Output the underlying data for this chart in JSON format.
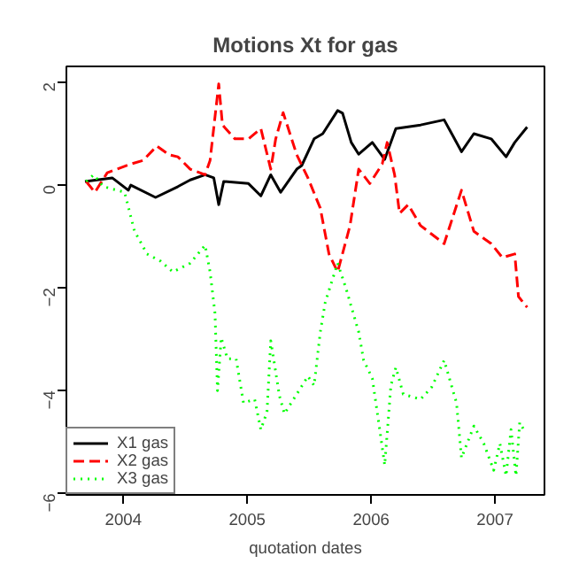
{
  "chart_data": {
    "type": "line",
    "title": "Motions Xt for gas",
    "xlabel": "quotation dates",
    "xlim": [
      2003.54,
      2007.4
    ],
    "ylim": [
      -6.03,
      2.31
    ],
    "xticks": [
      2004,
      2005,
      2006,
      2007
    ],
    "yticks": [
      -6,
      -4,
      -2,
      0,
      2
    ],
    "grid": false,
    "legend": "bottom left",
    "series": [
      {
        "name": "X1 gas",
        "color": "#000000",
        "line_style": "solid",
        "x": [
          2003.69,
          2003.91,
          2004.04,
          2004.06,
          2004.26,
          2004.44,
          2004.54,
          2004.66,
          2004.73,
          2004.77,
          2004.81,
          2005.01,
          2005.11,
          2005.19,
          2005.27,
          2005.4,
          2005.44,
          2005.54,
          2005.61,
          2005.73,
          2005.77,
          2005.84,
          2005.9,
          2006.01,
          2006.11,
          2006.2,
          2006.4,
          2006.59,
          2006.73,
          2006.83,
          2006.97,
          2007.09,
          2007.16,
          2007.26
        ],
        "values": [
          0.07,
          0.14,
          -0.1,
          0,
          -0.24,
          -0.03,
          0.1,
          0.2,
          0.14,
          -0.38,
          0.07,
          0.03,
          -0.21,
          0.2,
          -0.14,
          0.31,
          0.38,
          0.9,
          1.0,
          1.45,
          1.4,
          0.83,
          0.6,
          0.83,
          0.5,
          1.1,
          1.17,
          1.27,
          0.65,
          1.0,
          0.9,
          0.55,
          0.83,
          1.13
        ]
      },
      {
        "name": "X2 gas",
        "color": "#ff0000",
        "line_style": "dashed",
        "x": [
          2003.7,
          2003.77,
          2003.87,
          2004.06,
          2004.16,
          2004.27,
          2004.37,
          2004.44,
          2004.54,
          2004.66,
          2004.7,
          2004.77,
          2004.8,
          2004.9,
          2005.01,
          2005.11,
          2005.19,
          2005.23,
          2005.29,
          2005.4,
          2005.49,
          2005.59,
          2005.66,
          2005.73,
          2005.83,
          2005.9,
          2005.99,
          2006.09,
          2006.13,
          2006.19,
          2006.23,
          2006.3,
          2006.4,
          2006.59,
          2006.73,
          2006.83,
          2006.97,
          2007.06,
          2007.16,
          2007.19,
          2007.26
        ],
        "values": [
          0.07,
          -0.14,
          0.24,
          0.41,
          0.48,
          0.76,
          0.59,
          0.55,
          0.31,
          0.2,
          0.48,
          1.97,
          1.17,
          0.9,
          0.9,
          1.1,
          0.31,
          0.9,
          1.41,
          0.59,
          0.14,
          -0.45,
          -1.34,
          -1.69,
          -0.79,
          0.31,
          0.03,
          0.41,
          0.83,
          0.2,
          -0.55,
          -0.38,
          -0.79,
          -1.14,
          -0.1,
          -0.9,
          -1.14,
          -1.41,
          -1.34,
          -2.17,
          -2.38
        ]
      },
      {
        "name": "X3 gas",
        "color": "#00ff00",
        "line_style": "dotted",
        "x": [
          2003.7,
          2003.76,
          2003.84,
          2004.01,
          2004.09,
          2004.13,
          2004.19,
          2004.3,
          2004.4,
          2004.54,
          2004.66,
          2004.7,
          2004.74,
          2004.76,
          2004.79,
          2004.84,
          2004.91,
          2004.97,
          2005.06,
          2005.11,
          2005.16,
          2005.19,
          2005.26,
          2005.3,
          2005.4,
          2005.49,
          2005.54,
          2005.59,
          2005.63,
          2005.73,
          2005.8,
          2005.83,
          2005.9,
          2005.94,
          2006.01,
          2006.06,
          2006.11,
          2006.16,
          2006.2,
          2006.26,
          2006.4,
          2006.49,
          2006.59,
          2006.69,
          2006.73,
          2006.83,
          2006.91,
          2006.99,
          2007.04,
          2007.09,
          2007.13,
          2007.17,
          2007.2,
          2007.24
        ],
        "values": [
          0.07,
          0.2,
          -0.03,
          -0.14,
          -0.9,
          -1.07,
          -1.34,
          -1.48,
          -1.69,
          -1.52,
          -1.17,
          -1.69,
          -2.5,
          -4.0,
          -2.97,
          -3.38,
          -3.38,
          -4.24,
          -4.17,
          -4.76,
          -4.41,
          -3.03,
          -4.1,
          -4.45,
          -4.07,
          -3.72,
          -3.9,
          -2.86,
          -2.28,
          -1.52,
          -2.03,
          -2.28,
          -2.86,
          -3.41,
          -3.76,
          -4.59,
          -5.45,
          -3.9,
          -3.55,
          -4.07,
          -4.17,
          -3.93,
          -3.41,
          -4.24,
          -5.31,
          -4.69,
          -5.03,
          -5.55,
          -5.03,
          -5.66,
          -4.76,
          -5.66,
          -4.62,
          -4.79
        ]
      }
    ]
  }
}
